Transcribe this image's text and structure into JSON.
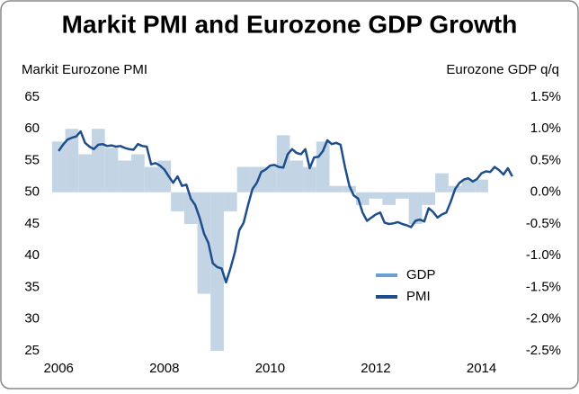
{
  "chart_data": {
    "type": "bar-line",
    "title": "Markit PMI and Eurozone GDP Growth",
    "y_label": "Markit Eurozone PMI",
    "y2_label": "Eurozone GDP q/q",
    "xlim": [
      2005.86,
      2014.62
    ],
    "xticks": [
      2006,
      2008,
      2010,
      2012,
      2014
    ],
    "ylim": [
      25,
      65
    ],
    "yticks": [
      25,
      30,
      35,
      40,
      45,
      50,
      55,
      60,
      65
    ],
    "y2lim": [
      -2.5,
      1.5
    ],
    "y2ticks": [
      {
        "value": -2.5,
        "label": "-2.5%"
      },
      {
        "value": -2.0,
        "label": "-2.0%"
      },
      {
        "value": -1.5,
        "label": "-1.5%"
      },
      {
        "value": -1.0,
        "label": "-1.0%"
      },
      {
        "value": -0.5,
        "label": "-0.5%"
      },
      {
        "value": 0,
        "label": "0.0%"
      },
      {
        "value": 0.5,
        "label": "0.5%"
      },
      {
        "value": 1.0,
        "label": "1.0%"
      },
      {
        "value": 1.5,
        "label": "1.5%"
      }
    ],
    "grid": false,
    "series": [
      {
        "name": "GDP",
        "kind": "bar",
        "axis": "y2",
        "color": "#c3d4e4",
        "x": [
          "2006 Q1",
          "2006 Q2",
          "2006 Q3",
          "2006 Q4",
          "2007 Q1",
          "2007 Q2",
          "2007 Q3",
          "2007 Q4",
          "2008 Q1",
          "2008 Q2",
          "2008 Q3",
          "2008 Q4",
          "2009 Q1",
          "2009 Q2",
          "2009 Q3",
          "2009 Q4",
          "2010 Q1",
          "2010 Q2",
          "2010 Q3",
          "2010 Q4",
          "2011 Q1",
          "2011 Q2",
          "2011 Q3",
          "2011 Q4",
          "2012 Q1",
          "2012 Q2",
          "2012 Q3",
          "2012 Q4",
          "2013 Q1",
          "2013 Q2",
          "2013 Q3",
          "2013 Q4",
          "2014 Q1"
        ],
        "values": [
          0.8,
          1.0,
          0.6,
          1.0,
          0.7,
          0.5,
          0.6,
          0.4,
          0.5,
          -0.3,
          -0.5,
          -1.6,
          -2.6,
          -0.3,
          0.4,
          0.4,
          0.4,
          0.9,
          0.5,
          0.4,
          0.8,
          0.1,
          0.1,
          -0.2,
          -0.1,
          -0.2,
          -0.1,
          -0.5,
          -0.2,
          0.3,
          0.1,
          0.2,
          0.2
        ]
      },
      {
        "name": "PMI",
        "kind": "line",
        "axis": "y",
        "color": "#1f4e8c",
        "x": [
          "2006-01",
          "2006-02",
          "2006-03",
          "2006-04",
          "2006-05",
          "2006-06",
          "2006-07",
          "2006-08",
          "2006-09",
          "2006-10",
          "2006-11",
          "2006-12",
          "2007-01",
          "2007-02",
          "2007-03",
          "2007-04",
          "2007-05",
          "2007-06",
          "2007-07",
          "2007-08",
          "2007-09",
          "2007-10",
          "2007-11",
          "2007-12",
          "2008-01",
          "2008-02",
          "2008-03",
          "2008-04",
          "2008-05",
          "2008-06",
          "2008-07",
          "2008-08",
          "2008-09",
          "2008-10",
          "2008-11",
          "2008-12",
          "2009-01",
          "2009-02",
          "2009-03",
          "2009-04",
          "2009-05",
          "2009-06",
          "2009-07",
          "2009-08",
          "2009-09",
          "2009-10",
          "2009-11",
          "2009-12",
          "2010-01",
          "2010-02",
          "2010-03",
          "2010-04",
          "2010-05",
          "2010-06",
          "2010-07",
          "2010-08",
          "2010-09",
          "2010-10",
          "2010-11",
          "2010-12",
          "2011-01",
          "2011-02",
          "2011-03",
          "2011-04",
          "2011-05",
          "2011-06",
          "2011-07",
          "2011-08",
          "2011-09",
          "2011-10",
          "2011-11",
          "2011-12",
          "2012-01",
          "2012-02",
          "2012-03",
          "2012-04",
          "2012-05",
          "2012-06",
          "2012-07",
          "2012-08",
          "2012-09",
          "2012-10",
          "2012-11",
          "2012-12",
          "2013-01",
          "2013-02",
          "2013-03",
          "2013-04",
          "2013-05",
          "2013-06",
          "2013-07",
          "2013-08",
          "2013-09",
          "2013-10",
          "2013-11",
          "2013-12",
          "2014-01",
          "2014-02",
          "2014-03",
          "2014-04",
          "2014-05",
          "2014-06",
          "2014-07",
          "2014-08"
        ],
        "values": [
          56.5,
          57.5,
          58.3,
          58.6,
          58.8,
          59.6,
          57.8,
          57.2,
          56.8,
          57.5,
          57.6,
          57.3,
          57.4,
          57.2,
          57.3,
          57.0,
          56.8,
          56.7,
          57.6,
          57.3,
          57.2,
          54.4,
          54.6,
          54.2,
          53.6,
          52.5,
          51.5,
          52.5,
          51.0,
          51.2,
          49.0,
          48.0,
          46.0,
          43.5,
          42.0,
          38.8,
          38.2,
          38.0,
          35.8,
          38.0,
          40.5,
          44.0,
          45.2,
          48.0,
          50.5,
          51.5,
          53.2,
          53.6,
          54.2,
          54.3,
          54.0,
          53.9,
          56.0,
          56.8,
          56.2,
          56.0,
          56.8,
          53.8,
          55.5,
          55.6,
          56.5,
          58.2,
          57.6,
          57.8,
          57.5,
          54.0,
          51.0,
          49.5,
          49.0,
          46.8,
          45.5,
          46.0,
          46.5,
          46.8,
          45.2,
          45.0,
          45.1,
          45.3,
          45.0,
          44.8,
          44.5,
          45.5,
          45.7,
          45.4,
          47.5,
          46.9,
          46.0,
          46.5,
          46.8,
          48.5,
          50.5,
          51.5,
          52.0,
          52.2,
          51.7,
          52.1,
          53.0,
          53.3,
          53.2,
          54.0,
          53.5,
          52.8,
          53.8,
          52.5
        ]
      }
    ]
  }
}
